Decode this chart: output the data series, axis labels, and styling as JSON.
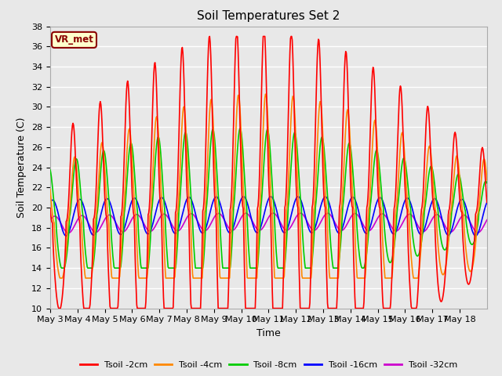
{
  "title": "Soil Temperatures Set 2",
  "xlabel": "Time",
  "ylabel": "Soil Temperature (C)",
  "ylim": [
    10,
    38
  ],
  "yticks": [
    10,
    12,
    14,
    16,
    18,
    20,
    22,
    24,
    26,
    28,
    30,
    32,
    34,
    36,
    38
  ],
  "xtick_labels": [
    "May 3",
    "May 4",
    "May 5",
    "May 6",
    "May 7",
    "May 8",
    "May 9",
    "May 10",
    "May 11",
    "May 12",
    "May 13",
    "May 14",
    "May 15",
    "May 16",
    "May 17",
    "May 18"
  ],
  "annotation_text": "VR_met",
  "annotation_bg": "#ffffcc",
  "annotation_border": "#8B0000",
  "annotation_text_color": "#8B0000",
  "series_colors": [
    "#ff0000",
    "#ff8800",
    "#00cc00",
    "#0000ff",
    "#cc00cc"
  ],
  "series_names": [
    "Tsoil -2cm",
    "Tsoil -4cm",
    "Tsoil -8cm",
    "Tsoil -16cm",
    "Tsoil -32cm"
  ],
  "bg_color": "#e8e8e8",
  "grid_color": "#ffffff",
  "title_fontsize": 11,
  "axis_label_fontsize": 9,
  "tick_fontsize": 8
}
